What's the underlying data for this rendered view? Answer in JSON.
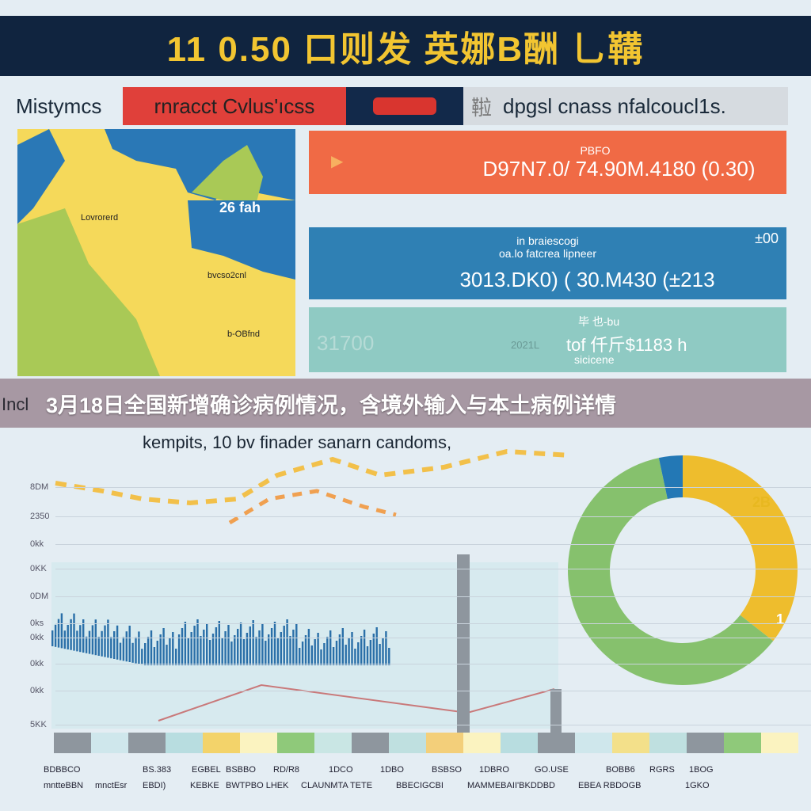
{
  "banner": {
    "title": "11 0.50 口则发 英娜B酬 乚鞲"
  },
  "header_row": {
    "label": "Mistymcs",
    "red_tab": "rnracct Cvlus'ıcss",
    "gray_tab_icon": "鞡",
    "gray_tab": "dpgsl cnass nfalcoucl1s."
  },
  "map": {
    "labels": [
      "Lovrorerd",
      "26 fah",
      "bvcso2cnl",
      "b-OBfnd"
    ],
    "colors": {
      "yellow": "#f5d95a",
      "blue": "#2a78b6",
      "green": "#a9c956"
    }
  },
  "cards": [
    {
      "small": "PBFO",
      "value": "D97N7.0/ 74.90M.4180 (0.30)",
      "color": "#f06a45"
    },
    {
      "small": "in braiescogi",
      "small2": "oa.lo fatcrea lipneer",
      "corner": "±00",
      "value": "3013.DK0) ( 30.M430 (±213",
      "color": "#2f80b4"
    },
    {
      "left": "31700",
      "mid": "2021L",
      "small": "毕 也-bu",
      "value": "tof 仟斤$1183 h",
      "sub": "sicicene",
      "color": "#8fcac3"
    }
  ],
  "overlay": {
    "title": "3月18日全国新增确诊病例情况，含境外输入与本土病例详情",
    "left_text": "Incl"
  },
  "chart": {
    "subtitle": "kempits, 10 bv finader sanarn candoms,",
    "y_labels": [
      "8DM",
      "2350",
      "0kk",
      "0KK",
      "0DM",
      "0ks",
      "0kk",
      "0kk",
      "0kk",
      "5KK"
    ],
    "x_labels_top": [
      "BDBBCO",
      "BS.383",
      "EGBEL",
      "BSBBO",
      "RD/R8",
      "1DCO",
      "1DBO",
      "BSBSO",
      "1DBRO",
      "GO.USE",
      "BOBB6",
      "RGRS",
      "1BOG"
    ],
    "x_labels_bottom": [
      "mntteBBN",
      "mnctEsr",
      "EBDI)",
      "KEBKE",
      "BWTPBO LHEK",
      "CLAUNMTA TETE",
      "BBECIGCBI",
      "MAMMEBAI",
      "I'BKDDBD",
      "EBEA RBDOGB",
      "1GKO"
    ],
    "donut_label_a": "2B",
    "donut_label_b": "1",
    "colors": {
      "bar": "#2a6fa8",
      "donut_green": "#86c16d",
      "donut_yellow": "#eebd2d",
      "donut_blue": "#2378b5"
    }
  }
}
